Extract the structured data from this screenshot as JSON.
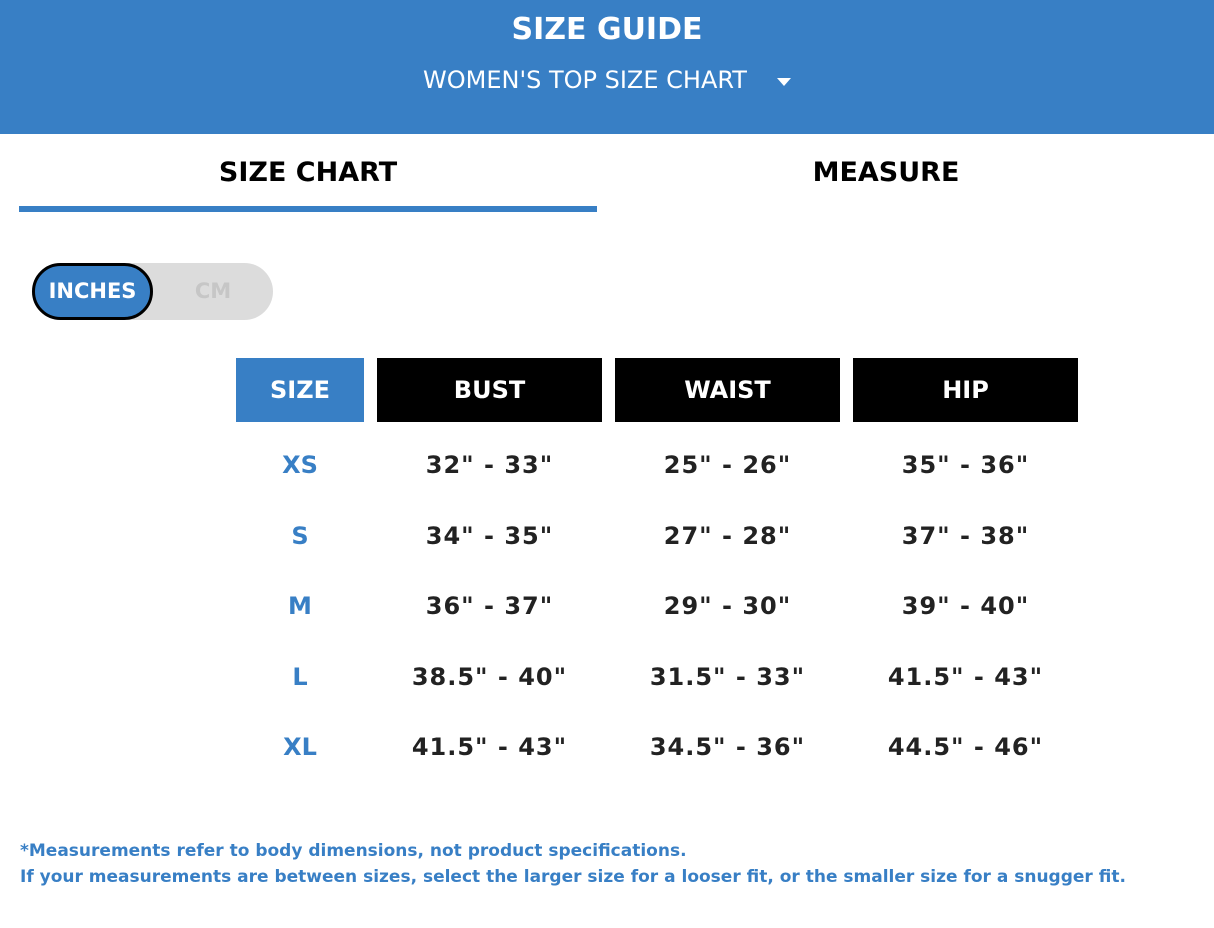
{
  "header": {
    "title": "SIZE GUIDE",
    "chart_select": "WOMEN'S TOP SIZE CHART",
    "caret_icon": "caret-down-icon"
  },
  "tabs": [
    {
      "label": "SIZE CHART",
      "active": true
    },
    {
      "label": "MEASURE",
      "active": false
    }
  ],
  "unit_toggle": {
    "options": [
      "INCHES",
      "CM"
    ],
    "selected": "INCHES"
  },
  "table": {
    "headers": [
      "SIZE",
      "BUST",
      "WAIST",
      "HIP"
    ],
    "rows": [
      [
        "XS",
        "32\" - 33\"",
        "25\" - 26\"",
        "35\" - 36\""
      ],
      [
        "S",
        "34\" - 35\"",
        "27\" - 28\"",
        "37\" - 38\""
      ],
      [
        "M",
        "36\" - 37\"",
        "29\" - 30\"",
        "39\" - 40\""
      ],
      [
        "L",
        "38.5\" - 40\"",
        "31.5\" - 33\"",
        "41.5\" - 43\""
      ],
      [
        "XL",
        "41.5\" - 43\"",
        "34.5\" - 36\"",
        "44.5\" - 46\""
      ]
    ]
  },
  "notes": [
    "*Measurements refer to body dimensions, not product specifications.",
    "If your measurements are between sizes, select the larger size for a looser fit, or the smaller size for a snugger fit."
  ],
  "colors": {
    "accent": "#387fc5",
    "header_cell": "#000000"
  }
}
